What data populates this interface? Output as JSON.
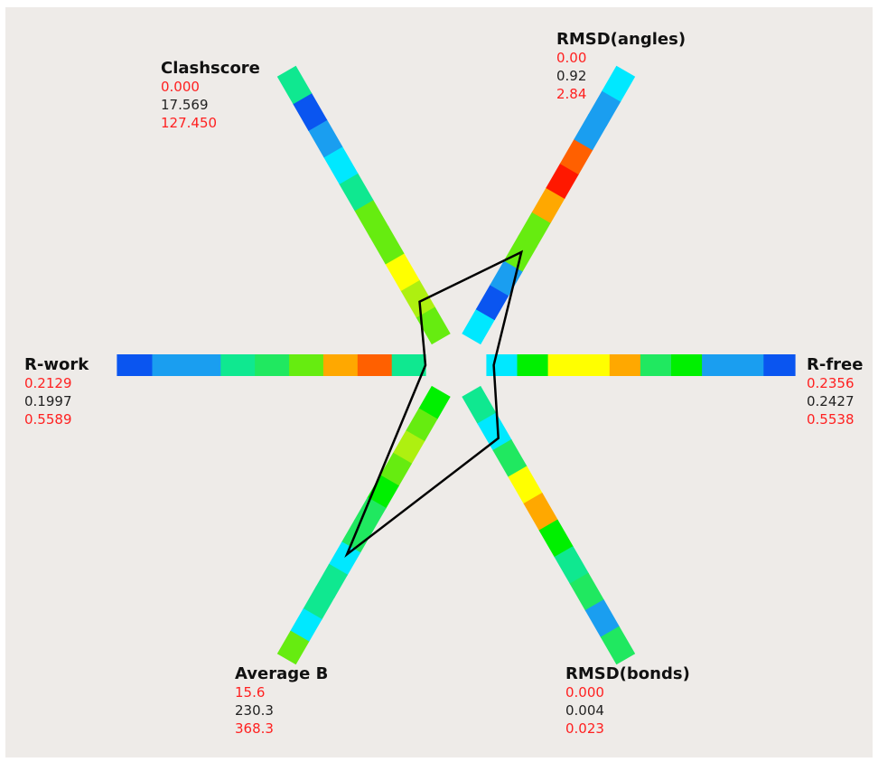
{
  "colors": {
    "background": "#eeebe8",
    "polygon": "#000000",
    "range_text": "#ff2020",
    "value_text": "#222222",
    "scale": [
      "#0a55f0",
      "#1a9ef0",
      "#00e8ff",
      "#0fe890",
      "#20e860",
      "#00f000",
      "#66ec10",
      "#aef010",
      "#ffff00",
      "#ffa800",
      "#ff6000",
      "#ff1800"
    ]
  },
  "chart_data": {
    "type": "polygon",
    "axes": [
      {
        "key": "clashscore",
        "title": "Clashscore",
        "min_label": "0.000",
        "value_label": "17.569",
        "max_label": "127.450",
        "value": 17.569,
        "min": 0.0,
        "max": 127.45,
        "band_colors": [
          6,
          7,
          8,
          6,
          6,
          3,
          2,
          1,
          0,
          3
        ]
      },
      {
        "key": "rmsd_angles",
        "title": "RMSD(angles)",
        "min_label": "0.00",
        "value_label": "0.92",
        "max_label": "2.84",
        "value": 0.92,
        "min": 0.0,
        "max": 2.84,
        "band_colors": [
          2,
          0,
          1,
          6,
          6,
          9,
          11,
          10,
          1,
          1,
          2
        ]
      },
      {
        "key": "r_free",
        "title": "R-free",
        "min_label": "0.2356",
        "value_label": "0.2427",
        "max_label": "0.5538",
        "value": 0.2427,
        "min": 0.2356,
        "max": 0.5538,
        "band_colors": [
          2,
          5,
          8,
          8,
          9,
          4,
          5,
          1,
          1,
          0
        ]
      },
      {
        "key": "rmsd_bonds",
        "title": "RMSD(bonds)",
        "min_label": "0.000",
        "value_label": "0.004",
        "max_label": "0.023",
        "value": 0.004,
        "min": 0.0,
        "max": 0.023,
        "band_colors": [
          3,
          2,
          4,
          8,
          9,
          5,
          3,
          4,
          1,
          4
        ]
      },
      {
        "key": "average_b",
        "title": "Average B",
        "min_label": "15.6",
        "value_label": "230.3",
        "max_label": "368.3",
        "value": 230.3,
        "min": 15.6,
        "max": 368.3,
        "band_colors": [
          5,
          6,
          7,
          6,
          5,
          4,
          4,
          2,
          3,
          3,
          2,
          6
        ]
      },
      {
        "key": "r_work",
        "title": "R-work",
        "min_label": "0.2129",
        "value_label": "0.1997",
        "max_label": "0.5589",
        "value": 0.1997,
        "min": 0.2129,
        "max": 0.5589,
        "band_colors": [
          3,
          10,
          9,
          6,
          4,
          3,
          1,
          1,
          0
        ]
      }
    ]
  }
}
